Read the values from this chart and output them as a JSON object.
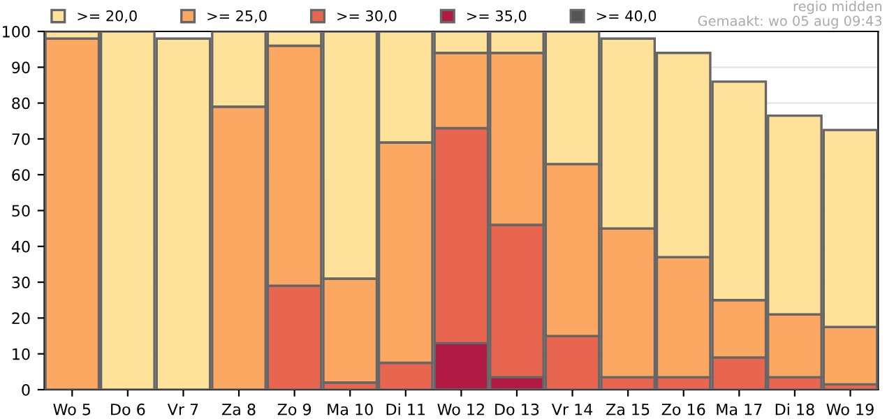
{
  "chart_data": {
    "type": "bar",
    "stacked": true,
    "categories": [
      "Wo 5",
      "Do 6",
      "Vr 7",
      "Za 8",
      "Zo 9",
      "Ma 10",
      "Di 11",
      "Wo 12",
      "Do 13",
      "Vr 14",
      "Za 15",
      "Zo 16",
      "Ma 17",
      "Di 18",
      "Wo 19"
    ],
    "series": [
      {
        "name": ">= 40,0",
        "color": "#555555",
        "values": [
          0,
          0,
          0,
          0,
          0,
          0,
          0,
          0,
          0,
          0,
          0,
          0,
          0,
          0,
          0
        ]
      },
      {
        "name": ">= 35,0",
        "color": "#b01a45",
        "values": [
          0,
          0,
          0,
          0,
          0,
          0,
          0,
          13,
          3.5,
          0,
          0,
          0,
          0,
          0,
          0
        ]
      },
      {
        "name": ">= 30,0",
        "color": "#e8654f",
        "values": [
          0,
          0,
          0,
          0,
          29,
          2,
          7.5,
          60,
          42.5,
          15,
          3.5,
          3.5,
          9,
          3.5,
          1.5
        ]
      },
      {
        "name": ">= 25,0",
        "color": "#fca862",
        "values": [
          98,
          0,
          0,
          79,
          67,
          29,
          61.5,
          21,
          48,
          48,
          41.5,
          33.5,
          16,
          17.5,
          16
        ]
      },
      {
        "name": ">= 20,0",
        "color": "#fee29a",
        "values": [
          2,
          100,
          98,
          21,
          4,
          69,
          31,
          6,
          6,
          37,
          53,
          57,
          61,
          55.5,
          55
        ]
      }
    ],
    "ylim": [
      0,
      100
    ],
    "yticks": [
      0,
      10,
      20,
      30,
      40,
      50,
      60,
      70,
      80,
      90,
      100
    ],
    "grid": "y",
    "legend": "top",
    "annotations": [
      "regio midden",
      "Gemaakt: wo 05 aug 09:43"
    ]
  }
}
